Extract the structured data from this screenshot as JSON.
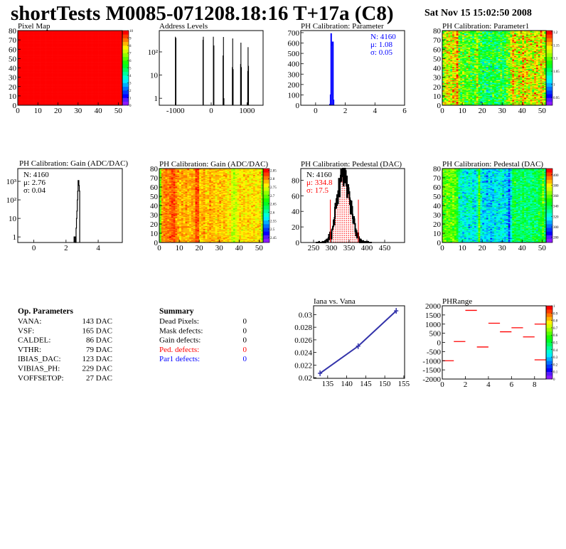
{
  "header": {
    "title": "shortTests M0085-071208.18:16 T+17a (C8)",
    "date": "Sat Nov 15 15:02:50 2008"
  },
  "op_parameters": {
    "title": "Op. Parameters",
    "rows": [
      {
        "name": "VANA:",
        "value": "143 DAC"
      },
      {
        "name": "VSF:",
        "value": "165 DAC"
      },
      {
        "name": "CALDEL:",
        "value": "86 DAC"
      },
      {
        "name": "VTHR:",
        "value": "79 DAC"
      },
      {
        "name": "IBIAS_DAC:",
        "value": "123 DAC"
      },
      {
        "name": "VIBIAS_PH:",
        "value": "229 DAC"
      },
      {
        "name": "VOFFSETOP:",
        "value": "27 DAC"
      }
    ]
  },
  "summary": {
    "title": "Summary",
    "rows": [
      {
        "name": "Dead Pixels:",
        "value": "0",
        "color": "#000000"
      },
      {
        "name": "Mask defects:",
        "value": "0",
        "color": "#000000"
      },
      {
        "name": "Gain defects:",
        "value": "0",
        "color": "#000000"
      },
      {
        "name": "Ped. defects:",
        "value": "0",
        "color": "#ff0000"
      },
      {
        "name": "Par1 defects:",
        "value": "0",
        "color": "#0000ff"
      }
    ]
  },
  "chart_data": [
    {
      "id": "pixelmap",
      "type": "heatmap",
      "title": "Pixel Map",
      "xlim": [
        0,
        52
      ],
      "ylim": [
        0,
        80
      ],
      "xticks": [
        0,
        10,
        20,
        30,
        40,
        50
      ],
      "yticks": [
        0,
        10,
        20,
        30,
        40,
        50,
        60,
        70,
        80
      ],
      "zlim": [
        0,
        10
      ],
      "zticks": [
        0,
        1,
        2,
        3,
        4,
        5,
        6,
        7,
        8,
        9,
        10
      ],
      "uniform_value": 10
    },
    {
      "id": "address",
      "type": "bar",
      "title": "Address Levels",
      "xlim": [
        -1450,
        1450
      ],
      "ylim": [
        0.5,
        830
      ],
      "logy": true,
      "xticks": [
        -1000,
        0,
        1000
      ],
      "yticks": [
        1,
        10,
        100
      ],
      "ytick_labels": [
        "1",
        "10",
        "10²"
      ],
      "bins": [
        [
          -1010,
          450
        ],
        [
          -995,
          400
        ],
        [
          -240,
          330
        ],
        [
          -230,
          450
        ],
        [
          50,
          450
        ],
        [
          65,
          190
        ],
        [
          320,
          70
        ],
        [
          332,
          440
        ],
        [
          345,
          1
        ],
        [
          580,
          22
        ],
        [
          590,
          380
        ],
        [
          602,
          18
        ],
        [
          810,
          30
        ],
        [
          820,
          250
        ],
        [
          832,
          22
        ],
        [
          1010,
          15
        ],
        [
          1020,
          160
        ],
        [
          1032,
          25
        ]
      ]
    },
    {
      "id": "param",
      "type": "bar",
      "title": "PH Calibration: Parameter",
      "xlim": [
        -1,
        6
      ],
      "ylim": [
        0,
        720
      ],
      "xticks": [
        0,
        2,
        4,
        6
      ],
      "yticks": [
        0,
        100,
        200,
        300,
        400,
        500,
        600,
        700
      ],
      "color": "#0000ff",
      "bin_start": 0.95,
      "bin_width": 0.04,
      "counts": [
        10,
        100,
        690,
        580,
        610,
        610,
        50
      ],
      "stats": [
        {
          "label": "N: 4160",
          "color": "#0000ff"
        },
        {
          "label": "μ: 1.08",
          "color": "#0000ff"
        },
        {
          "label": "σ: 0.05",
          "color": "#0000ff"
        }
      ]
    },
    {
      "id": "param1",
      "type": "heatmap",
      "title": "PH Calibration: Parameter1",
      "xlim": [
        0,
        52
      ],
      "ylim": [
        0,
        80
      ],
      "xticks": [
        0,
        10,
        20,
        30,
        40,
        50
      ],
      "yticks": [
        0,
        10,
        20,
        30,
        40,
        50,
        60,
        70,
        80
      ],
      "zlim": [
        0.92,
        1.205
      ],
      "zticks": [
        0.95,
        1,
        1.05,
        1.1,
        1.15,
        1.2
      ],
      "column_means": [
        1.1,
        1.12,
        1.14,
        1.13,
        1.12,
        1.14,
        1.13,
        1.17,
        1.1,
        1.09,
        1.1,
        1.08,
        1.09,
        1.1,
        1.08,
        1.07,
        1.09,
        1.12,
        1.08,
        1.07,
        1.06,
        1.07,
        1.06,
        1.07,
        1.06,
        1.08,
        1.07,
        1.06,
        1.07,
        1.08,
        1.06,
        1.07,
        1.09,
        1.1,
        1.12,
        1.16,
        1.13,
        1.12,
        1.14,
        1.12,
        1.15,
        1.13,
        1.14,
        1.12,
        1.13,
        1.12,
        1.14,
        1.13,
        1.12,
        1.15,
        1.13,
        1.11
      ],
      "spread": 0.03
    },
    {
      "id": "gainh",
      "type": "bar",
      "title": "PH Calibration: Gain (ADC/DAC)",
      "xlim": [
        -1,
        5.5
      ],
      "ylim": [
        0.5,
        4900
      ],
      "logy": true,
      "xticks": [
        0,
        2,
        4
      ],
      "yticks": [
        1,
        10,
        100,
        1000
      ],
      "ytick_labels": [
        "1",
        "10",
        "10²",
        "10³"
      ],
      "color": "#000000",
      "bin_start": 2.5,
      "bin_width": 0.025,
      "counts": [
        1,
        1,
        1,
        0,
        0,
        3,
        10,
        25,
        100,
        300,
        1100,
        1100,
        600,
        300
      ],
      "stats": [
        {
          "label": "N: 4160",
          "color": "#000000"
        },
        {
          "label": "μ: 2.76",
          "color": "#000000"
        },
        {
          "label": "σ: 0.04",
          "color": "#000000"
        }
      ]
    },
    {
      "id": "gainmap",
      "type": "heatmap",
      "title": "PH Calibration: Gain (ADC/DAC)",
      "xlim": [
        0,
        52
      ],
      "ylim": [
        0,
        80
      ],
      "xticks": [
        0,
        10,
        20,
        30,
        40,
        50
      ],
      "yticks": [
        0,
        10,
        20,
        30,
        40,
        50,
        60,
        70,
        80
      ],
      "zlim": [
        2.42,
        2.86
      ],
      "zticks": [
        2.45,
        2.5,
        2.55,
        2.6,
        2.65,
        2.7,
        2.75,
        2.8,
        2.85
      ],
      "column_means": [
        2.7,
        2.79,
        2.8,
        2.81,
        2.8,
        2.81,
        2.82,
        2.82,
        2.8,
        2.79,
        2.78,
        2.79,
        2.78,
        2.79,
        2.78,
        2.78,
        2.79,
        2.79,
        2.82,
        2.82,
        2.77,
        2.78,
        2.79,
        2.77,
        2.78,
        2.79,
        2.78,
        2.78,
        2.77,
        2.78,
        2.78,
        2.77,
        2.78,
        2.77,
        2.76,
        2.77,
        2.74,
        2.73,
        2.74,
        2.76,
        2.77,
        2.76,
        2.77,
        2.76,
        2.77,
        2.76,
        2.76,
        2.77,
        2.76,
        2.76,
        2.77,
        2.71
      ],
      "spread": 0.015
    },
    {
      "id": "pedh",
      "type": "bar",
      "title": "PH Calibration: Pedestal (DAC)",
      "xlim": [
        214,
        506
      ],
      "ylim": [
        0,
        95
      ],
      "xticks": [
        250,
        300,
        350,
        400,
        450
      ],
      "yticks": [
        0,
        20,
        40,
        60,
        80
      ],
      "distribution": {
        "entries": 4160,
        "mean": 334.8,
        "sigma": 17.5,
        "bin_width": 1
      },
      "cut_lines": [
        297,
        376
      ],
      "cut_color": "#ff0000",
      "stats": [
        {
          "label": "N: 4160",
          "color": "#000000"
        },
        {
          "label": "μ: 334.8",
          "color": "#ff0000"
        },
        {
          "label": "σ: 17.5",
          "color": "#ff0000"
        }
      ]
    },
    {
      "id": "pedmap",
      "type": "heatmap",
      "title": "PH Calibration: Pedestal (DAC)",
      "xlim": [
        0,
        52
      ],
      "ylim": [
        0,
        80
      ],
      "xticks": [
        0,
        10,
        20,
        30,
        40,
        50
      ],
      "yticks": [
        0,
        10,
        20,
        30,
        40,
        50,
        60,
        70,
        80
      ],
      "zlim": [
        270,
        412
      ],
      "zticks": [
        280,
        300,
        320,
        340,
        360,
        380,
        400
      ],
      "column_means": [
        355,
        358,
        360,
        358,
        357,
        360,
        356,
        352,
        330,
        325,
        322,
        320,
        324,
        322,
        326,
        320,
        318,
        325,
        358,
        322,
        316,
        318,
        312,
        318,
        310,
        316,
        320,
        318,
        316,
        322,
        318,
        314,
        316,
        300,
        322,
        340,
        342,
        338,
        336,
        334,
        340,
        336,
        338,
        334,
        336,
        340,
        338,
        336,
        342,
        344,
        356,
        336
      ],
      "spread": 9
    },
    {
      "id": "iana",
      "type": "line",
      "title": "Iana vs. Vana",
      "xlim": [
        131.3,
        155.2
      ],
      "ylim": [
        0.0199,
        0.0314
      ],
      "xticks": [
        135,
        140,
        145,
        150,
        155
      ],
      "yticks": [
        0.02,
        0.022,
        0.024,
        0.026,
        0.028,
        0.03
      ],
      "color": "#3333aa",
      "x": [
        133,
        143,
        153
      ],
      "y": [
        0.0207,
        0.025,
        0.0306
      ]
    },
    {
      "id": "phrange",
      "type": "heatmap",
      "title": "PHRange",
      "xlim": [
        0,
        9
      ],
      "ylim": [
        -2000,
        2000
      ],
      "xticks": [
        0,
        2,
        4,
        6,
        8
      ],
      "yticks": [
        2000,
        1500,
        1000,
        500,
        0,
        -500,
        -1000,
        -1500,
        -2000
      ],
      "zlim": [
        0,
        1
      ],
      "zticks": [
        0,
        0.1,
        0.2,
        0.3,
        0.4,
        0.5,
        0.6,
        0.7,
        0.8,
        0.9,
        1
      ],
      "segments": [
        [
          0,
          -1000
        ],
        [
          1,
          50
        ],
        [
          2,
          1750
        ],
        [
          3,
          -250
        ],
        [
          4,
          1050
        ],
        [
          5,
          580
        ],
        [
          6,
          800
        ],
        [
          7,
          300
        ],
        [
          8,
          1000
        ],
        [
          8,
          -950
        ]
      ],
      "color": "#ff0000"
    }
  ]
}
